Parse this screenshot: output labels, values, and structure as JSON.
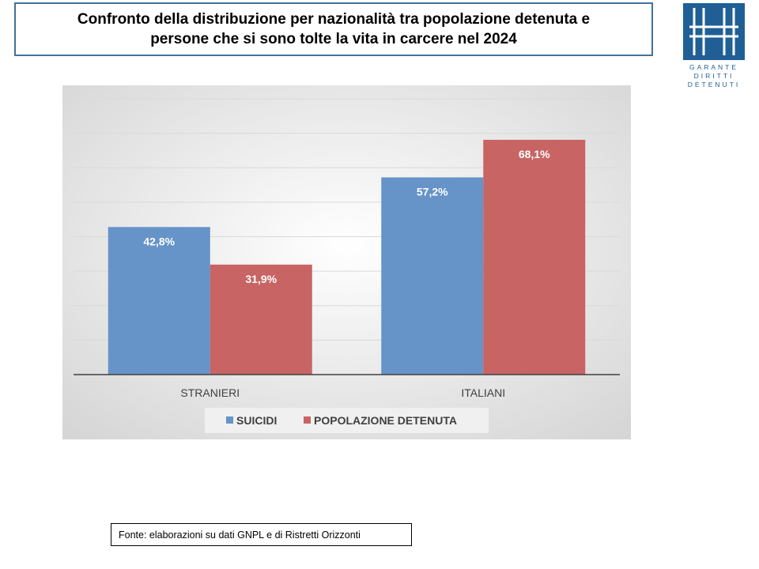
{
  "header": {
    "title_line1": "Confronto della distribuzione per nazionalità tra popolazione detenuta e",
    "title_line2": "persone che si sono tolte la vita in carcere nel 2024"
  },
  "logo": {
    "line1": "GARANTE",
    "line2": "DIRITTI",
    "line3": "DETENUTI",
    "color": "#1f5f96"
  },
  "source": {
    "text": "Fonte: elaborazioni su dati GNPL e di Ristretti Orizzonti"
  },
  "chart_data": {
    "type": "bar",
    "categories": [
      "STRANIERI",
      "ITALIANI"
    ],
    "series": [
      {
        "name": "SUICIDI",
        "values": [
          42.8,
          57.2
        ],
        "labels": [
          "42,8%",
          "57,2%"
        ],
        "color": "#6693c8"
      },
      {
        "name": "POPOLAZIONE DETENUTA",
        "values": [
          31.9,
          68.1
        ],
        "labels": [
          "31,9%",
          "68,1%"
        ],
        "color": "#c86464"
      }
    ],
    "ylim": [
      0,
      80
    ],
    "grid": true,
    "legend_position": "bottom",
    "title": "",
    "xlabel": "",
    "ylabel": ""
  }
}
